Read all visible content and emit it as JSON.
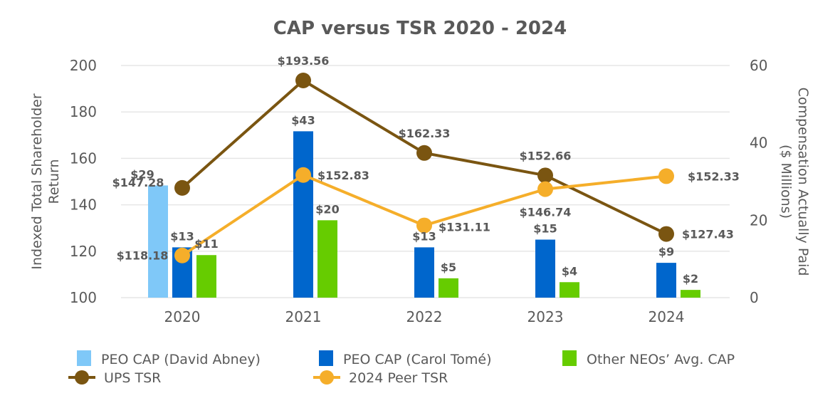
{
  "chart_data": {
    "type": "bar",
    "title": "CAP versus TSR 2020 - 2024",
    "categories": [
      "2020",
      "2021",
      "2022",
      "2023",
      "2024"
    ],
    "y_left": {
      "label_lines": [
        "Indexed Total Shareholder",
        "Return"
      ],
      "range": [
        100,
        200
      ],
      "ticks": [
        "100",
        "120",
        "140",
        "160",
        "180",
        "200"
      ]
    },
    "y_right": {
      "label_lines": [
        "Compensation Actually Paid",
        "($ Millions)"
      ],
      "range": [
        0,
        60
      ],
      "ticks": [
        "0",
        "20",
        "40",
        "60"
      ]
    },
    "grid": true,
    "legend_position": "bottom",
    "bar_series": [
      {
        "name": "PEO CAP (David Abney)",
        "color": "#7fc8f8",
        "axis": "right",
        "values": [
          29,
          null,
          null,
          null,
          null
        ],
        "labels": [
          "$29",
          "",
          "",
          "",
          ""
        ]
      },
      {
        "name": "PEO CAP (Carol Tomé)",
        "color": "#0066cc",
        "axis": "right",
        "values": [
          13,
          43,
          13,
          15,
          9
        ],
        "labels": [
          "$13",
          "$43",
          "$13",
          "$15",
          "$9"
        ]
      },
      {
        "name": "Other NEOs’ Avg. CAP",
        "color": "#66cc00",
        "axis": "right",
        "values": [
          11,
          20,
          5,
          4,
          2
        ],
        "labels": [
          "$11",
          "$20",
          "$5",
          "$4",
          "$2"
        ]
      }
    ],
    "line_series": [
      {
        "name": "UPS TSR",
        "color": "#7a5511",
        "axis": "left",
        "values": [
          147.28,
          193.56,
          162.33,
          152.66,
          127.43
        ],
        "labels": [
          "$147.28",
          "$193.56",
          "$162.33",
          "$152.66",
          "$127.43"
        ]
      },
      {
        "name": "2024 Peer TSR",
        "color": "#f5ae2a",
        "axis": "left",
        "values": [
          118.18,
          152.83,
          131.11,
          146.74,
          152.33
        ],
        "labels": [
          "$118.18",
          "$152.83",
          "$131.11",
          "$146.74",
          "$152.33"
        ]
      }
    ]
  }
}
